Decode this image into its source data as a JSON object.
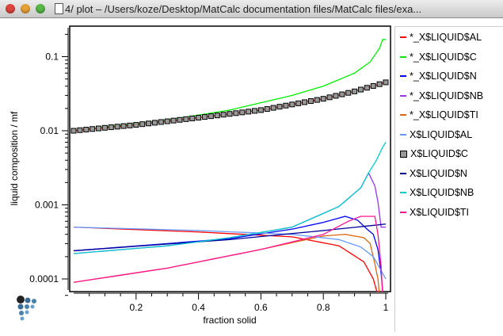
{
  "window": {
    "title": "4/ plot – /Users/koze/Desktop/MatCalc documentation files/MatCalc files/exa..."
  },
  "chart_data": {
    "type": "line",
    "xlabel": "fraction solid",
    "ylabel": "liquid composition / mf",
    "xlim": [
      0,
      1
    ],
    "ylim": [
      6e-05,
      0.25
    ],
    "yscale": "log",
    "xticks": [
      "0.2",
      "0.4",
      "0.6",
      "0.8",
      "1"
    ],
    "yticks": [
      "0.1",
      "0.01",
      "0.001",
      "0.0001"
    ],
    "legend_position": "right",
    "series": [
      {
        "name": "*_X$LIQUID$AL",
        "color": "#ff0000",
        "points": [
          [
            0,
            0.0005
          ],
          [
            0.4,
            0.00043
          ],
          [
            0.7,
            0.00037
          ],
          [
            0.85,
            0.00028
          ],
          [
            0.93,
            0.00017
          ],
          [
            0.96,
            0.0001
          ],
          [
            0.975,
            6e-05
          ]
        ]
      },
      {
        "name": "*_X$LIQUID$C",
        "color": "#00ee00",
        "points": [
          [
            0,
            0.01
          ],
          [
            0.3,
            0.014
          ],
          [
            0.5,
            0.019
          ],
          [
            0.7,
            0.03
          ],
          [
            0.8,
            0.04
          ],
          [
            0.9,
            0.06
          ],
          [
            0.95,
            0.085
          ],
          [
            0.98,
            0.13
          ],
          [
            0.99,
            0.17
          ],
          [
            1,
            0.17
          ]
        ]
      },
      {
        "name": "*_X$LIQUID$N",
        "color": "#0000ff",
        "points": [
          [
            0,
            0.00024
          ],
          [
            0.3,
            0.0003
          ],
          [
            0.5,
            0.00035
          ],
          [
            0.7,
            0.00047
          ],
          [
            0.8,
            0.00058
          ],
          [
            0.87,
            0.0007
          ],
          [
            0.91,
            0.00062
          ],
          [
            0.94,
            0.00047
          ],
          [
            0.96,
            0.0004
          ],
          [
            0.975,
            0.00025
          ],
          [
            0.985,
            0.00012
          ],
          [
            0.99,
            7e-05
          ]
        ]
      },
      {
        "name": "*_X$LIQUID$NB",
        "color": "#9933ee",
        "points": [
          [
            0,
            0.00022
          ],
          [
            0.3,
            0.00028
          ],
          [
            0.5,
            0.00036
          ],
          [
            0.7,
            0.0005
          ],
          [
            0.85,
            0.00095
          ],
          [
            0.92,
            0.0017
          ],
          [
            0.945,
            0.0027
          ],
          [
            0.965,
            0.0018
          ],
          [
            0.975,
            0.0011
          ],
          [
            0.985,
            0.0005
          ],
          [
            1,
            0.0005
          ]
        ]
      },
      {
        "name": "*_X$LIQUID$TI",
        "color": "#dd6611",
        "points": [
          [
            0,
            9e-05
          ],
          [
            0.3,
            0.00014
          ],
          [
            0.6,
            0.00025
          ],
          [
            0.8,
            0.00038
          ],
          [
            0.87,
            0.0004
          ],
          [
            0.93,
            0.00036
          ],
          [
            0.95,
            0.0003
          ],
          [
            0.965,
            0.00016
          ],
          [
            0.975,
            0.0001
          ],
          [
            0.98,
            6e-05
          ]
        ]
      },
      {
        "name": "X$LIQUID$AL",
        "color": "#6699ff",
        "points": [
          [
            0,
            0.0005
          ],
          [
            0.4,
            0.00045
          ],
          [
            0.7,
            0.0004
          ],
          [
            0.85,
            0.00034
          ],
          [
            0.92,
            0.00027
          ],
          [
            0.96,
            0.0002
          ],
          [
            0.985,
            0.00013
          ],
          [
            1,
            0.0001
          ]
        ]
      },
      {
        "name": "X$LIQUID$C",
        "color": "#ee2222",
        "marker": "square",
        "points": [
          [
            0,
            0.01
          ],
          [
            0.2,
            0.012
          ],
          [
            0.4,
            0.015
          ],
          [
            0.6,
            0.019
          ],
          [
            0.8,
            0.027
          ],
          [
            0.9,
            0.034
          ],
          [
            1,
            0.045
          ]
        ]
      },
      {
        "name": "X$LIQUID$N",
        "color": "#000099",
        "points": [
          [
            0,
            0.00024
          ],
          [
            0.5,
            0.00034
          ],
          [
            0.8,
            0.00045
          ],
          [
            1,
            0.00055
          ]
        ]
      },
      {
        "name": "X$LIQUID$NB",
        "color": "#00cccc",
        "points": [
          [
            0,
            0.00022
          ],
          [
            0.3,
            0.00028
          ],
          [
            0.5,
            0.00036
          ],
          [
            0.7,
            0.0005
          ],
          [
            0.85,
            0.00095
          ],
          [
            0.92,
            0.0017
          ],
          [
            0.945,
            0.0027
          ],
          [
            0.97,
            0.004
          ],
          [
            0.99,
            0.006
          ],
          [
            1,
            0.007
          ]
        ]
      },
      {
        "name": "X$LIQUID$TI",
        "color": "#ff1493",
        "points": [
          [
            0,
            9e-05
          ],
          [
            0.3,
            0.00014
          ],
          [
            0.6,
            0.00025
          ],
          [
            0.8,
            0.0004
          ],
          [
            0.88,
            0.0006
          ],
          [
            0.92,
            0.0007
          ],
          [
            0.965,
            0.0007
          ],
          [
            0.975,
            0.0004
          ],
          [
            0.985,
            0.00015
          ],
          [
            0.99,
            6e-05
          ]
        ]
      }
    ]
  }
}
